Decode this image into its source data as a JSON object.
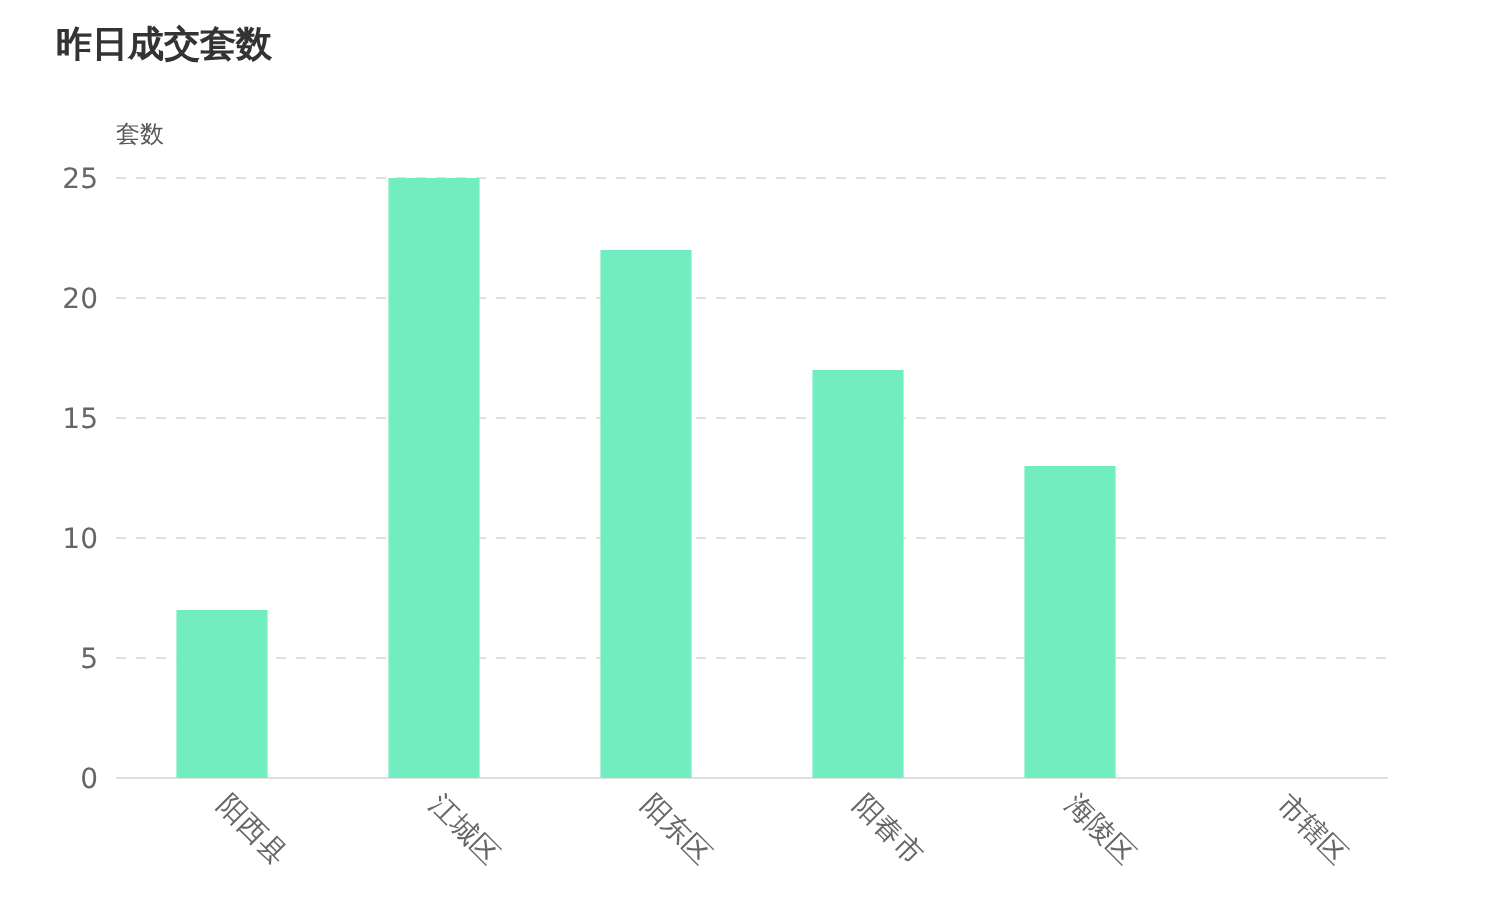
{
  "chart_data": {
    "type": "bar",
    "title": "昨日成交套数",
    "ylabel": "套数",
    "categories": [
      "阳西县",
      "江城区",
      "阳东区",
      "阳春市",
      "海陵区",
      "市辖区"
    ],
    "values": [
      7,
      25,
      22,
      17,
      13,
      0
    ],
    "color": "#72edc0",
    "ylim": [
      0,
      25
    ],
    "yticks": [
      0,
      5,
      10,
      15,
      20,
      25
    ],
    "grid": "y"
  }
}
